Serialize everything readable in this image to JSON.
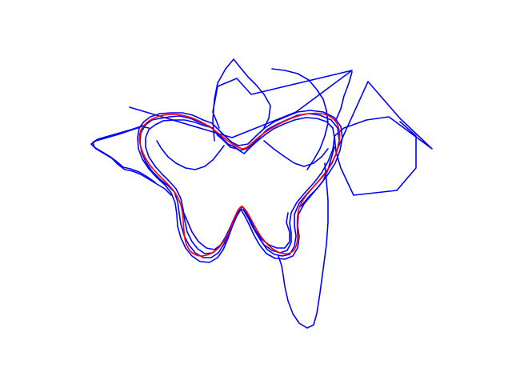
{
  "figure": {
    "background": "#ffffff",
    "curves": [
      {
        "id": "trace-noisy",
        "color": "#0000ff"
      },
      {
        "id": "trace-smooth",
        "color": "#ff0000"
      }
    ]
  }
}
